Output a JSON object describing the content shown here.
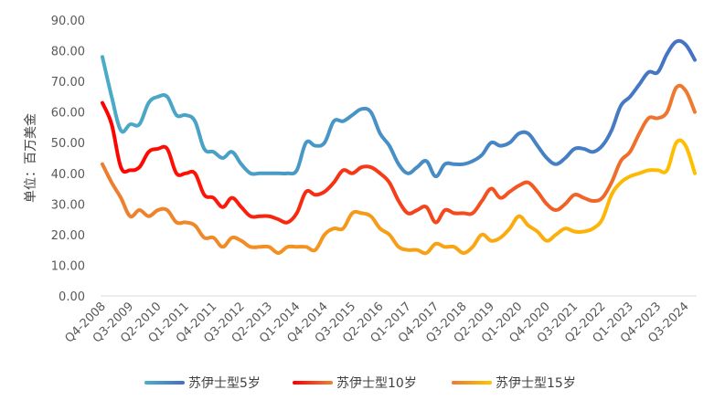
{
  "chart_data": {
    "type": "line",
    "ylabel": "单位：百万美金",
    "ylim": [
      0,
      90
    ],
    "yticks": [
      "0.00",
      "10.00",
      "20.00",
      "30.00",
      "40.00",
      "50.00",
      "60.00",
      "70.00",
      "80.00",
      "90.00"
    ],
    "xticks": [
      "Q4-2008",
      "Q3-2009",
      "Q2-2010",
      "Q1-2011",
      "Q4-2011",
      "Q3-2012",
      "Q2-2013",
      "Q1-2014",
      "Q4-2014",
      "Q3-2015",
      "Q2-2016",
      "Q1-2017",
      "Q4-2017",
      "Q3-2018",
      "Q2-2019",
      "Q1-2020",
      "Q4-2020",
      "Q3-2021",
      "Q2-2022",
      "Q1-2023",
      "Q4-2023",
      "Q3-2024"
    ],
    "x": [
      "Q4-2008",
      "Q1-2009",
      "Q2-2009",
      "Q3-2009",
      "Q4-2009",
      "Q1-2010",
      "Q2-2010",
      "Q3-2010",
      "Q4-2010",
      "Q1-2011",
      "Q2-2011",
      "Q3-2011",
      "Q4-2011",
      "Q1-2012",
      "Q2-2012",
      "Q3-2012",
      "Q4-2012",
      "Q1-2013",
      "Q2-2013",
      "Q3-2013",
      "Q4-2013",
      "Q1-2014",
      "Q2-2014",
      "Q3-2014",
      "Q4-2014",
      "Q1-2015",
      "Q2-2015",
      "Q3-2015",
      "Q4-2015",
      "Q1-2016",
      "Q2-2016",
      "Q3-2016",
      "Q4-2016",
      "Q1-2017",
      "Q2-2017",
      "Q3-2017",
      "Q4-2017",
      "Q1-2018",
      "Q2-2018",
      "Q3-2018",
      "Q4-2018",
      "Q1-2019",
      "Q2-2019",
      "Q3-2019",
      "Q4-2019",
      "Q1-2020",
      "Q2-2020",
      "Q3-2020",
      "Q4-2020",
      "Q1-2021",
      "Q2-2021",
      "Q3-2021",
      "Q4-2021",
      "Q1-2022",
      "Q2-2022",
      "Q3-2022",
      "Q4-2022",
      "Q1-2023",
      "Q2-2023",
      "Q3-2023",
      "Q4-2023",
      "Q1-2024",
      "Q2-2024",
      "Q3-2024",
      "Q4-2024"
    ],
    "series": [
      {
        "name": "苏伊士型5岁",
        "colors": [
          "#4bacc6",
          "#4472c4"
        ],
        "values": [
          78,
          65,
          54,
          56,
          56,
          63,
          65,
          65,
          59,
          59,
          57,
          48,
          47,
          45,
          47,
          43,
          40,
          40,
          40,
          40,
          40,
          41,
          50,
          49,
          50,
          57,
          57,
          59,
          61,
          60,
          53,
          49,
          43,
          40,
          42,
          44,
          39,
          43,
          43,
          43,
          44,
          46,
          50,
          49,
          50,
          53,
          53,
          49,
          45,
          43,
          45,
          48,
          48,
          47,
          49,
          54,
          62,
          65,
          69,
          73,
          73,
          79,
          83,
          82,
          77
        ]
      },
      {
        "name": "苏伊士型10岁",
        "colors": [
          "#ff0000",
          "#ed7d31"
        ],
        "values": [
          63,
          56,
          42,
          41,
          42,
          47,
          48,
          48,
          40,
          40,
          40,
          33,
          32,
          29,
          32,
          29,
          26,
          26,
          26,
          25,
          24,
          27,
          34,
          33,
          34,
          37,
          41,
          40,
          42,
          42,
          40,
          37,
          31,
          27,
          28,
          29,
          24,
          28,
          27,
          27,
          27,
          31,
          35,
          32,
          34,
          36,
          37,
          34,
          30,
          28,
          30,
          33,
          32,
          31,
          32,
          37,
          44,
          47,
          53,
          58,
          58,
          60,
          68,
          67,
          60
        ]
      },
      {
        "name": "苏伊士型15岁",
        "colors": [
          "#ed7d31",
          "#ffc000"
        ],
        "values": [
          43,
          37,
          32,
          26,
          28,
          26,
          28,
          28,
          24,
          24,
          23,
          19,
          19,
          16,
          19,
          18,
          16,
          16,
          16,
          14,
          16,
          16,
          16,
          15,
          20,
          22,
          22,
          27,
          27,
          26,
          22,
          20,
          16,
          15,
          15,
          14,
          17,
          16,
          16,
          14,
          16,
          20,
          18,
          19,
          22,
          26,
          23,
          21,
          18,
          20,
          22,
          21,
          21,
          22,
          25,
          33,
          37,
          39,
          40,
          41,
          41,
          41,
          50,
          49,
          40
        ]
      }
    ],
    "legend": "bottom"
  }
}
